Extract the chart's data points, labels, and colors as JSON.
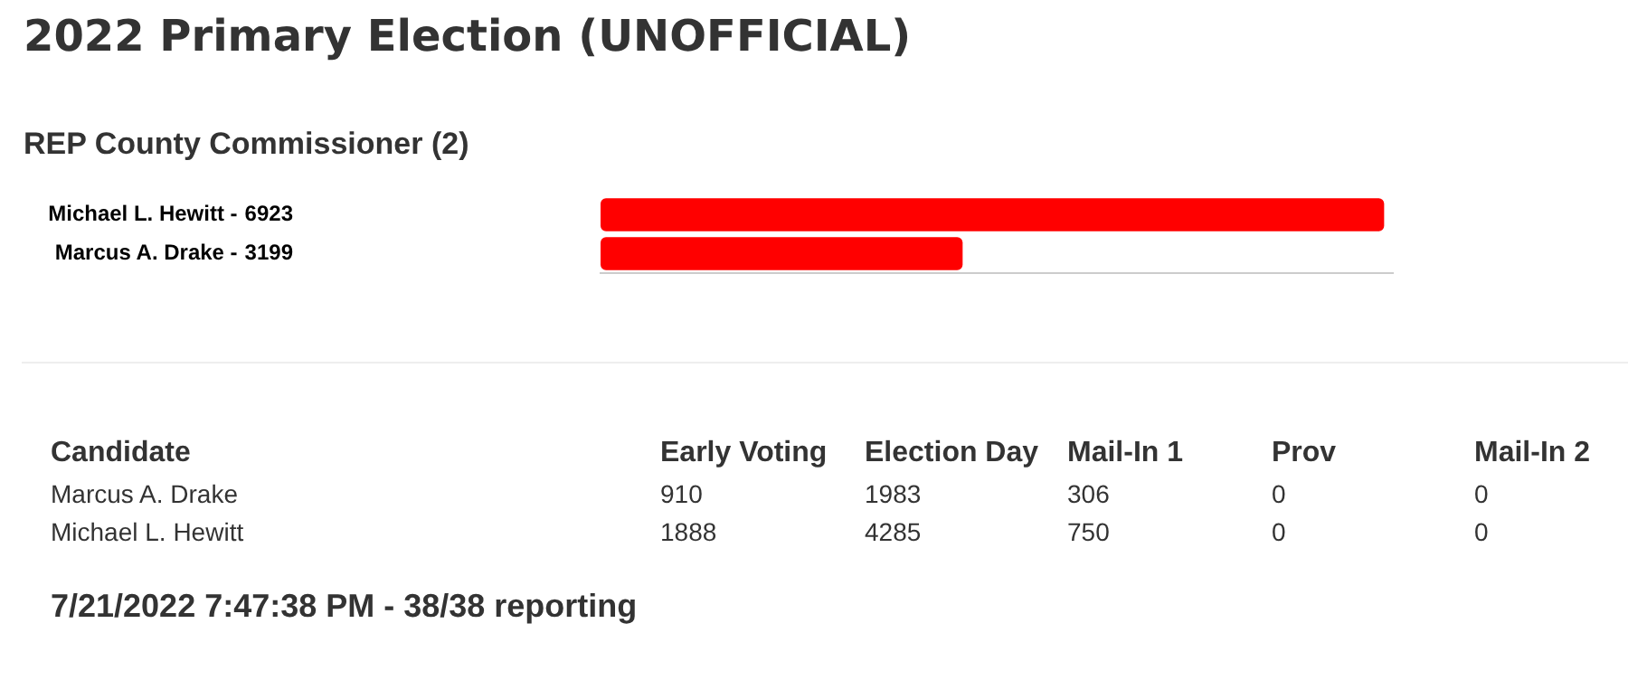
{
  "chart_data": [
    {
      "type": "bar",
      "title": "2022 Primary Election (UNOFFICIAL)",
      "subtitle": "REP County Commissioner (2)",
      "orientation": "horizontal",
      "categories": [
        "Michael L. Hewitt -",
        "Marcus A. Drake -"
      ],
      "values": [
        6923,
        3199
      ],
      "data_labels": true,
      "color": "#ff0000",
      "grid": false,
      "legend": false,
      "tick_labels": "y"
    },
    {
      "type": "other",
      "legend_title": "Candidate",
      "categories": [
        "Early Voting",
        "Election Day",
        "Mail-In 1",
        "Prov",
        "Mail-In 2"
      ],
      "series": [
        {
          "name": "Marcus A. Drake",
          "values": [
            910,
            1983,
            306,
            0,
            0
          ]
        },
        {
          "name": "Michael L. Hewitt",
          "values": [
            1888,
            4285,
            750,
            0,
            0
          ]
        }
      ],
      "data_labels": true,
      "annotations": [
        "7/21/2022 7:47:38 PM - 38/38 reporting"
      ]
    }
  ]
}
